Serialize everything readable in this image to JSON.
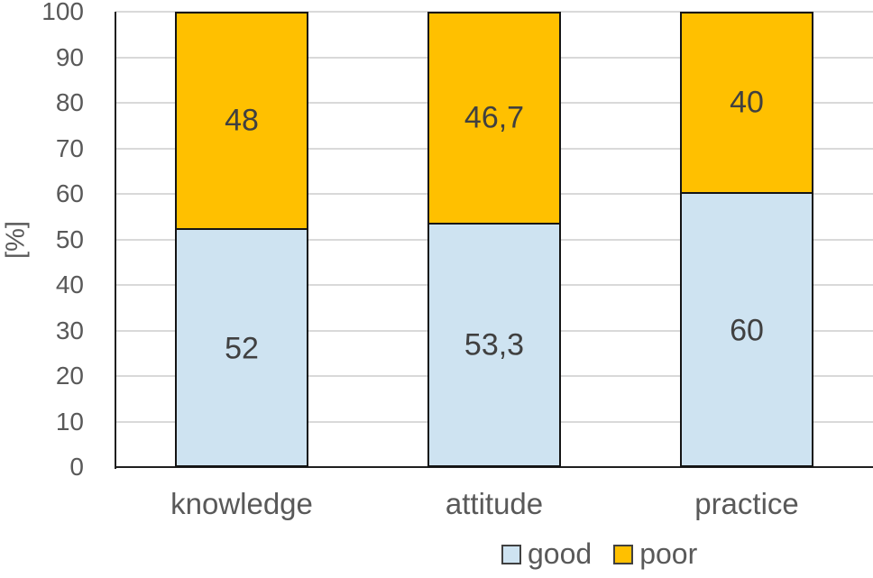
{
  "chart_data": {
    "type": "bar",
    "stacked": true,
    "title": "",
    "categories": [
      "knowledge",
      "attitude",
      "practice"
    ],
    "series": [
      {
        "name": "good",
        "color": "#cee3f1",
        "values": [
          52,
          53.3,
          60
        ],
        "display_labels": [
          "52",
          "53,3",
          "60"
        ]
      },
      {
        "name": "poor",
        "color": "#ffc000",
        "values": [
          48,
          46.7,
          40
        ],
        "display_labels": [
          "48",
          "46,7",
          "40"
        ]
      }
    ],
    "xlabel": "",
    "ylabel": "[%]",
    "ylim": [
      0,
      100
    ],
    "ytick_step": 10,
    "ytick_labels": [
      "0",
      "10",
      "20",
      "30",
      "40",
      "50",
      "60",
      "70",
      "80",
      "90",
      "100"
    ],
    "grid": true,
    "gridline_color": "#d9d9d9",
    "axis_color": "#1f1f1f",
    "data_label_color": "#404040",
    "tick_label_color": "#595959",
    "legend_position": "bottom",
    "legend": [
      {
        "label": "good",
        "color": "#cee3f1"
      },
      {
        "label": "poor",
        "color": "#ffc000"
      }
    ]
  }
}
